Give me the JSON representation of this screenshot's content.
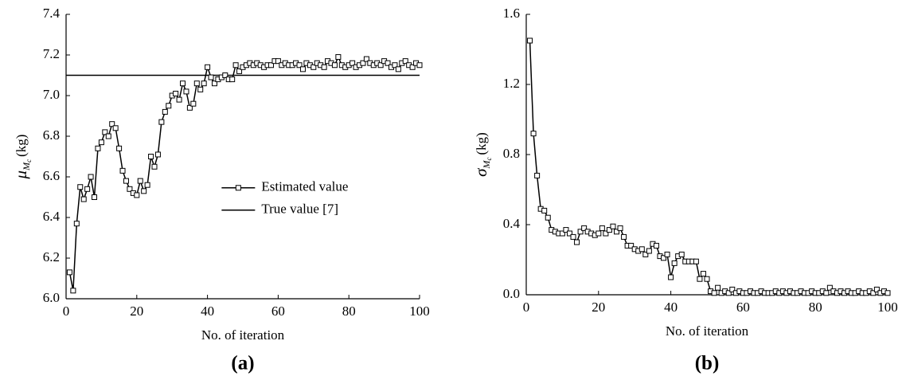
{
  "chart_data": [
    {
      "type": "line",
      "panel_label": "(a)",
      "xlabel": "No. of iteration",
      "ylabel": {
        "symbol": "μ",
        "sub": "M",
        "subsub": "c",
        "unit": "(kg)"
      },
      "xlim": [
        0,
        100
      ],
      "xticks": [
        0,
        20,
        40,
        60,
        80,
        100
      ],
      "ylim": [
        6,
        7.4
      ],
      "yticks": [
        {
          "value": 6,
          "label": "6.0"
        },
        6.2,
        6.4,
        6.6,
        6.8,
        {
          "value": 7,
          "label": "7.0"
        },
        7.2,
        7.4
      ],
      "legend": "center",
      "x": [
        1,
        2,
        3,
        4,
        5,
        6,
        7,
        8,
        9,
        10,
        11,
        12,
        13,
        14,
        15,
        16,
        17,
        18,
        19,
        20,
        21,
        22,
        23,
        24,
        25,
        26,
        27,
        28,
        29,
        30,
        31,
        32,
        33,
        34,
        35,
        36,
        37,
        38,
        39,
        40,
        41,
        42,
        43,
        44,
        45,
        46,
        47,
        48,
        49,
        50,
        51,
        52,
        53,
        54,
        55,
        56,
        57,
        58,
        59,
        60,
        61,
        62,
        63,
        64,
        65,
        66,
        67,
        68,
        69,
        70,
        71,
        72,
        73,
        74,
        75,
        76,
        77,
        78,
        79,
        80,
        81,
        82,
        83,
        84,
        85,
        86,
        87,
        88,
        89,
        90,
        91,
        92,
        93,
        94,
        95,
        96,
        97,
        98,
        99,
        100
      ],
      "series": [
        {
          "name": "Estimated value",
          "color": "#000000",
          "marker": "square",
          "values": [
            6.13,
            6.04,
            6.37,
            6.55,
            6.49,
            6.54,
            6.6,
            6.5,
            6.74,
            6.77,
            6.82,
            6.8,
            6.86,
            6.84,
            6.74,
            6.63,
            6.58,
            6.54,
            6.52,
            6.51,
            6.58,
            6.53,
            6.56,
            6.7,
            6.65,
            6.71,
            6.87,
            6.92,
            6.95,
            7.0,
            7.01,
            6.98,
            7.06,
            7.02,
            6.94,
            6.96,
            7.06,
            7.03,
            7.06,
            7.14,
            7.09,
            7.06,
            7.08,
            7.09,
            7.1,
            7.08,
            7.08,
            7.15,
            7.12,
            7.14,
            7.15,
            7.16,
            7.15,
            7.16,
            7.15,
            7.14,
            7.15,
            7.15,
            7.17,
            7.17,
            7.15,
            7.16,
            7.15,
            7.15,
            7.16,
            7.15,
            7.13,
            7.16,
            7.15,
            7.14,
            7.16,
            7.15,
            7.14,
            7.17,
            7.16,
            7.15,
            7.19,
            7.15,
            7.14,
            7.15,
            7.16,
            7.14,
            7.15,
            7.16,
            7.18,
            7.16,
            7.15,
            7.16,
            7.15,
            7.17,
            7.16,
            7.14,
            7.15,
            7.13,
            7.16,
            7.17,
            7.15,
            7.14,
            7.16,
            7.15
          ]
        }
      ],
      "hline": {
        "name": "True value [7]",
        "value": 7.1,
        "color": "#000000"
      }
    },
    {
      "type": "line",
      "panel_label": "(b)",
      "xlabel": "No. of iteration",
      "ylabel": {
        "symbol": "σ",
        "sub": "M",
        "subsub": "c",
        "unit": "(kg)"
      },
      "xlim": [
        0,
        100
      ],
      "xticks": [
        0,
        20,
        40,
        60,
        80,
        100
      ],
      "ylim": [
        0,
        1.6
      ],
      "yticks": [
        {
          "value": 0,
          "label": "0.0"
        },
        0.4,
        0.8,
        1.2,
        1.6
      ],
      "x": [
        1,
        2,
        3,
        4,
        5,
        6,
        7,
        8,
        9,
        10,
        11,
        12,
        13,
        14,
        15,
        16,
        17,
        18,
        19,
        20,
        21,
        22,
        23,
        24,
        25,
        26,
        27,
        28,
        29,
        30,
        31,
        32,
        33,
        34,
        35,
        36,
        37,
        38,
        39,
        40,
        41,
        42,
        43,
        44,
        45,
        46,
        47,
        48,
        49,
        50,
        51,
        52,
        53,
        54,
        55,
        56,
        57,
        58,
        59,
        60,
        61,
        62,
        63,
        64,
        65,
        66,
        67,
        68,
        69,
        70,
        71,
        72,
        73,
        74,
        75,
        76,
        77,
        78,
        79,
        80,
        81,
        82,
        83,
        84,
        85,
        86,
        87,
        88,
        89,
        90,
        91,
        92,
        93,
        94,
        95,
        96,
        97,
        98,
        99,
        100
      ],
      "series": [
        {
          "name": "Estimated value",
          "color": "#000000",
          "marker": "square",
          "show_legend": false,
          "values": [
            1.45,
            0.92,
            0.68,
            0.49,
            0.48,
            0.44,
            0.37,
            0.36,
            0.35,
            0.35,
            0.37,
            0.35,
            0.33,
            0.3,
            0.36,
            0.38,
            0.36,
            0.35,
            0.34,
            0.35,
            0.38,
            0.35,
            0.37,
            0.39,
            0.36,
            0.38,
            0.33,
            0.28,
            0.28,
            0.26,
            0.25,
            0.26,
            0.23,
            0.25,
            0.29,
            0.28,
            0.22,
            0.21,
            0.23,
            0.1,
            0.18,
            0.22,
            0.23,
            0.19,
            0.19,
            0.19,
            0.19,
            0.09,
            0.12,
            0.09,
            0.02,
            0.01,
            0.04,
            0.01,
            0.02,
            0.01,
            0.03,
            0.01,
            0.02,
            0.01,
            0.01,
            0.02,
            0.01,
            0.01,
            0.02,
            0.01,
            0.01,
            0.01,
            0.02,
            0.01,
            0.02,
            0.01,
            0.02,
            0.01,
            0.01,
            0.02,
            0.01,
            0.01,
            0.02,
            0.01,
            0.01,
            0.02,
            0.01,
            0.04,
            0.02,
            0.01,
            0.02,
            0.01,
            0.02,
            0.01,
            0.01,
            0.02,
            0.01,
            0.01,
            0.02,
            0.01,
            0.03,
            0.01,
            0.02,
            0.01
          ]
        }
      ]
    }
  ]
}
